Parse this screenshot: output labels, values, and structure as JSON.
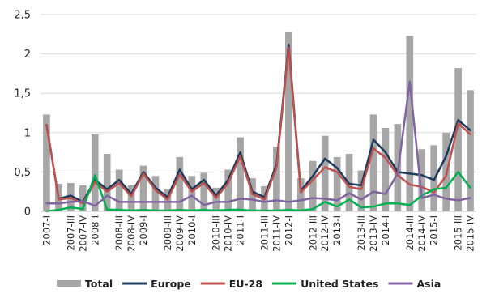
{
  "chart_data": {
    "type": "bar+line",
    "categories": [
      "2007-I",
      "2007-II",
      "2007-III",
      "2007-IV",
      "2008-I",
      "2008-II",
      "2008-III",
      "2008-IV",
      "2009-I",
      "2009-II",
      "2009-III",
      "2009-IV",
      "2010-I",
      "2010-II",
      "2010-III",
      "2010-IV",
      "2011-I",
      "2011-II",
      "2011-III",
      "2011-IV",
      "2012-I",
      "2012-II",
      "2012-III",
      "2012-IV",
      "2013-I",
      "2013-II",
      "2013-III",
      "2013-IV",
      "2014-I",
      "2014-II",
      "2014-III",
      "2014-IV",
      "2015-I",
      "2015-II",
      "2015-III",
      "2015-IV"
    ],
    "x_tick_labels": [
      "2007-I",
      "2007-III",
      "2007-IV",
      "2008-I",
      "2008-III",
      "2008-IV",
      "2009-I",
      "2009-III",
      "2009-IV",
      "2010-I",
      "2010-III",
      "2010-IV",
      "2011-I",
      "2011-III",
      "2011-IV",
      "2012-I",
      "2012-III",
      "2012-IV",
      "2013-I",
      "2013-III",
      "2013-IV",
      "2014-I",
      "2014-III",
      "2014-IV",
      "2015-I",
      "2015-III",
      "2015-IV"
    ],
    "y_ticks": [
      "0",
      "0,5",
      "1",
      "1,5",
      "2",
      "2,5"
    ],
    "ylim": [
      0,
      2.5
    ],
    "grid": "horizontal",
    "legend_position": "bottom",
    "series": [
      {
        "name": "Total",
        "kind": "bar",
        "color": "#a6a6a6",
        "values": [
          1.23,
          0.35,
          0.36,
          0.33,
          0.98,
          0.73,
          0.53,
          0.33,
          0.58,
          0.45,
          0.28,
          0.69,
          0.45,
          0.49,
          0.3,
          0.53,
          0.94,
          0.42,
          0.32,
          0.82,
          2.28,
          0.42,
          0.64,
          0.96,
          0.69,
          0.73,
          0.52,
          1.23,
          1.06,
          1.11,
          2.23,
          0.79,
          0.84,
          1.0,
          1.82,
          1.54
        ]
      },
      {
        "name": "Europe",
        "kind": "line",
        "color": "#1b3a5c",
        "values": [
          1.1,
          0.16,
          0.2,
          0.12,
          0.4,
          0.28,
          0.4,
          0.22,
          0.5,
          0.3,
          0.18,
          0.53,
          0.28,
          0.4,
          0.2,
          0.4,
          0.75,
          0.25,
          0.18,
          0.6,
          2.12,
          0.26,
          0.45,
          0.67,
          0.55,
          0.35,
          0.33,
          0.91,
          0.75,
          0.5,
          0.48,
          0.46,
          0.4,
          0.7,
          1.16,
          1.03
        ]
      },
      {
        "name": "EU-28",
        "kind": "line",
        "color": "#c0504d",
        "values": [
          1.1,
          0.15,
          0.17,
          0.1,
          0.37,
          0.25,
          0.36,
          0.19,
          0.48,
          0.27,
          0.15,
          0.47,
          0.25,
          0.36,
          0.17,
          0.36,
          0.7,
          0.22,
          0.15,
          0.56,
          2.08,
          0.24,
          0.4,
          0.56,
          0.5,
          0.31,
          0.28,
          0.8,
          0.68,
          0.46,
          0.34,
          0.31,
          0.24,
          0.45,
          1.12,
          0.98
        ]
      },
      {
        "name": "United States",
        "kind": "line",
        "color": "#00b050",
        "values": [
          0.0,
          0.02,
          0.05,
          0.03,
          0.46,
          0.02,
          0.02,
          0.01,
          0.02,
          0.01,
          0.01,
          0.02,
          0.01,
          0.02,
          0.01,
          0.02,
          0.02,
          0.01,
          0.01,
          0.01,
          0.02,
          0.01,
          0.03,
          0.12,
          0.06,
          0.15,
          0.05,
          0.06,
          0.1,
          0.1,
          0.08,
          0.2,
          0.28,
          0.3,
          0.5,
          0.3
        ]
      },
      {
        "name": "Asia",
        "kind": "line",
        "color": "#8064a2",
        "values": [
          0.1,
          0.1,
          0.12,
          0.13,
          0.07,
          0.2,
          0.12,
          0.12,
          0.12,
          0.12,
          0.12,
          0.12,
          0.2,
          0.08,
          0.12,
          0.12,
          0.16,
          0.15,
          0.12,
          0.14,
          0.12,
          0.14,
          0.17,
          0.16,
          0.14,
          0.23,
          0.15,
          0.25,
          0.22,
          0.48,
          1.65,
          0.17,
          0.21,
          0.16,
          0.14,
          0.17
        ]
      }
    ]
  }
}
